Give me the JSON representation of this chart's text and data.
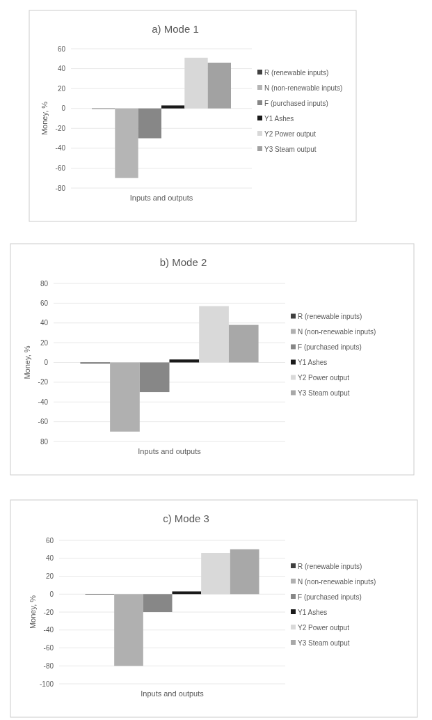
{
  "chart_data": [
    {
      "type": "bar",
      "title": "a) Mode 1",
      "ylabel": "Money, %",
      "categories": [
        "Inputs and outputs"
      ],
      "ylim": [
        -80,
        60
      ],
      "yticks": [
        -80,
        -60,
        -40,
        -20,
        0,
        20,
        40,
        60
      ],
      "grid": "y",
      "legend": "right",
      "series": [
        {
          "name": "R (renewable inputs)",
          "color": "#404040",
          "values": [
            0
          ]
        },
        {
          "name": "N (non-renewable inputs)",
          "color": "#b5b5b5",
          "values": [
            -70
          ]
        },
        {
          "name": "F (purchased inputs)",
          "color": "#878787",
          "values": [
            -30
          ]
        },
        {
          "name": "Y1 Ashes",
          "color": "#1a1a1a",
          "values": [
            3
          ]
        },
        {
          "name": "Y2 Power output",
          "color": "#d8d8d8",
          "values": [
            51
          ]
        },
        {
          "name": "Y3 Steam output",
          "color": "#a2a2a2",
          "values": [
            46
          ]
        }
      ]
    },
    {
      "type": "bar",
      "title": "b) Mode 2",
      "ylabel": "Money, %",
      "categories": [
        "Inputs and outputs"
      ],
      "ylim": [
        -80,
        80
      ],
      "yticks": [
        {
          "value": -80,
          "label": "80"
        },
        -60,
        -40,
        -20,
        0,
        20,
        40,
        60,
        80
      ],
      "grid": "y",
      "legend": "right",
      "series": [
        {
          "name": "R (renewable inputs)",
          "color": "#404040",
          "values": [
            -1
          ]
        },
        {
          "name": "N (non-renewable inputs)",
          "color": "#b0b0b0",
          "values": [
            -70
          ]
        },
        {
          "name": "F (purchased inputs)",
          "color": "#878787",
          "values": [
            -30
          ]
        },
        {
          "name": "Y1 Ashes",
          "color": "#1a1a1a",
          "values": [
            3
          ]
        },
        {
          "name": "Y2 Power output",
          "color": "#d9d9d9",
          "values": [
            57
          ]
        },
        {
          "name": "Y3 Steam output",
          "color": "#a8a8a8",
          "values": [
            38
          ]
        }
      ]
    },
    {
      "type": "bar",
      "title": "c) Mode 3",
      "ylabel": "Money, %",
      "categories": [
        "Inputs and outputs"
      ],
      "ylim": [
        -100,
        60
      ],
      "yticks": [
        -100,
        -80,
        -60,
        -40,
        -20,
        0,
        20,
        40,
        60
      ],
      "grid": "y",
      "legend": "right",
      "series": [
        {
          "name": "R (renewable inputs)",
          "color": "#404040",
          "values": [
            0
          ]
        },
        {
          "name": "N (non-renewable inputs)",
          "color": "#b0b0b0",
          "values": [
            -80
          ]
        },
        {
          "name": "F (purchased inputs)",
          "color": "#878787",
          "values": [
            -20
          ]
        },
        {
          "name": "Y1 Ashes",
          "color": "#1a1a1a",
          "values": [
            3
          ]
        },
        {
          "name": "Y2 Power output",
          "color": "#d9d9d9",
          "values": [
            46
          ]
        },
        {
          "name": "Y3 Steam output",
          "color": "#a8a8a8",
          "values": [
            50
          ]
        }
      ]
    }
  ]
}
